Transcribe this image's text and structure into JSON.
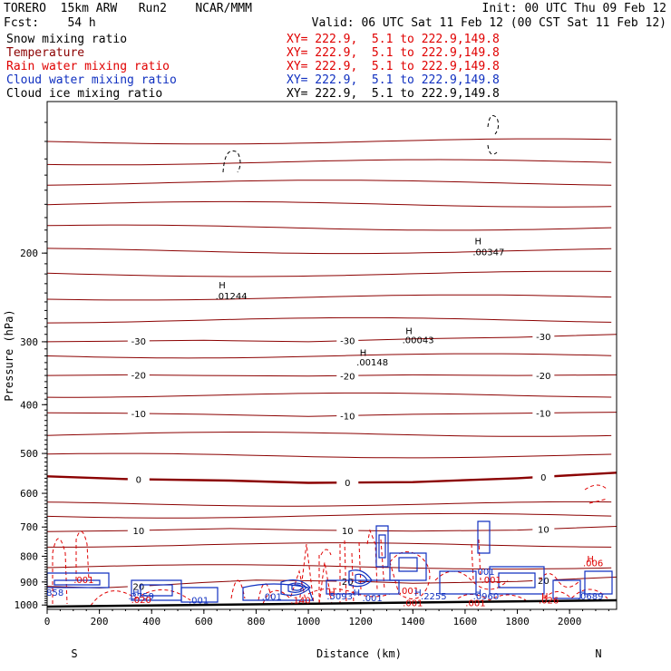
{
  "header": {
    "model": "TORERO  15km ARW   Run2    NCAR/MMM",
    "init": "Init: 00 UTC Thu 09 Feb 12",
    "fcst": "Fcst:    54 h",
    "valid": "Valid: 06 UTC Sat 11 Feb 12 (00 CST Sat 11 Feb 12)"
  },
  "legend": [
    {
      "name": "Snow mixing ratio",
      "xy": "XY= 222.9,  5.1 to 222.9,149.8",
      "color": "#000000"
    },
    {
      "name": "Temperature",
      "xy": "XY= 222.9,  5.1 to 222.9,149.8",
      "color": "#8b0000"
    },
    {
      "name": "Rain water mixing ratio",
      "xy": "XY= 222.9,  5.1 to 222.9,149.8",
      "color": "#e00000"
    },
    {
      "name": "Cloud water mixing ratio",
      "xy": "XY= 222.9,  5.1 to 222.9,149.8",
      "color": "#1030c0"
    },
    {
      "name": "Cloud ice mixing ratio",
      "xy": "XY= 222.9,  5.1 to 222.9,149.8",
      "color": "#000000"
    }
  ],
  "chart_data": {
    "type": "contour",
    "xlabel": "Distance (km)",
    "ylabel": "Pressure (hPa)",
    "xlim": [
      0,
      2180
    ],
    "ylim": [
      1020,
      100
    ],
    "y_scale": "log",
    "x_ticks": [
      0,
      200,
      400,
      600,
      800,
      1000,
      1200,
      1400,
      1600,
      1800,
      2000
    ],
    "y_ticks": [
      200,
      300,
      400,
      500,
      600,
      700,
      800,
      900,
      1000
    ],
    "x_end_labels": {
      "left": "S",
      "right": "N"
    },
    "temperature_isotherms": [
      {
        "value": -30,
        "label": "-30",
        "points": [
          [
            0,
            300
          ],
          [
            300,
            299
          ],
          [
            600,
            298
          ],
          [
            1000,
            300
          ],
          [
            1400,
            296
          ],
          [
            1800,
            294
          ],
          [
            2180,
            290
          ]
        ]
      },
      {
        "value": -20,
        "label": "-20",
        "points": [
          [
            0,
            350
          ],
          [
            300,
            349
          ],
          [
            600,
            350
          ],
          [
            1000,
            351
          ],
          [
            1400,
            349
          ],
          [
            1800,
            350
          ],
          [
            2180,
            349
          ]
        ]
      },
      {
        "value": -10,
        "label": "-10",
        "points": [
          [
            0,
            415
          ],
          [
            300,
            416
          ],
          [
            600,
            418
          ],
          [
            1000,
            422
          ],
          [
            1400,
            418
          ],
          [
            1800,
            416
          ],
          [
            2180,
            414
          ]
        ]
      },
      {
        "value": 0,
        "label": "0",
        "points": [
          [
            0,
            555
          ],
          [
            300,
            562
          ],
          [
            700,
            566
          ],
          [
            1000,
            572
          ],
          [
            1400,
            570
          ],
          [
            1800,
            560
          ],
          [
            2180,
            546
          ]
        ]
      },
      {
        "value": 10,
        "label": "10",
        "points": [
          [
            0,
            715
          ],
          [
            300,
            712
          ],
          [
            700,
            705
          ],
          [
            1000,
            710
          ],
          [
            1400,
            713
          ],
          [
            1800,
            710
          ],
          [
            2180,
            698
          ]
        ]
      },
      {
        "value": 20,
        "label": "20",
        "points": [
          [
            0,
            918
          ],
          [
            200,
            925
          ],
          [
            400,
            915
          ],
          [
            600,
            902
          ],
          [
            800,
            892
          ],
          [
            1000,
            895
          ],
          [
            1200,
            898
          ],
          [
            1400,
            905
          ],
          [
            1800,
            898
          ],
          [
            2180,
            880
          ]
        ]
      }
    ],
    "contour_labels": [
      {
        "text": "H",
        "x": 670,
        "p": 235,
        "color": "#000000"
      },
      {
        "text": ".01244",
        "x": 705,
        "p": 247,
        "color": "#000000"
      },
      {
        "text": "H",
        "x": 1385,
        "p": 290,
        "color": "#000000"
      },
      {
        "text": ".00043",
        "x": 1420,
        "p": 302,
        "color": "#000000"
      },
      {
        "text": "H",
        "x": 1210,
        "p": 320,
        "color": "#000000"
      },
      {
        "text": ".00148",
        "x": 1245,
        "p": 334,
        "color": "#000000"
      },
      {
        "text": "H",
        "x": 1650,
        "p": 192,
        "color": "#000000"
      },
      {
        "text": ".00347",
        "x": 1690,
        "p": 202,
        "color": "#000000"
      },
      {
        "text": "H",
        "x": 2080,
        "p": 822,
        "color": "#e00000"
      },
      {
        "text": ".006",
        "x": 2090,
        "p": 838,
        "color": "#e00000"
      },
      {
        "text": ".001",
        "x": 140,
        "p": 905,
        "color": "#e00000"
      },
      {
        "text": ".001",
        "x": 1700,
        "p": 905,
        "color": "#e00000"
      },
      {
        "text": ".001",
        "x": 1675,
        "p": 872,
        "color": "#1030c0"
      },
      {
        "text": "858",
        "x": 30,
        "p": 958,
        "color": "#1030c0"
      },
      {
        "text": "H",
        "x": 340,
        "p": 958,
        "color": "#1030c0"
      },
      {
        "text": ".3759",
        "x": 360,
        "p": 975,
        "color": "#1030c0"
      },
      {
        "text": ".020",
        "x": 360,
        "p": 990,
        "color": "#e00000"
      },
      {
        "text": ".001",
        "x": 580,
        "p": 992,
        "color": "#1030c0"
      },
      {
        "text": ".001",
        "x": 860,
        "p": 976,
        "color": "#1030c0"
      },
      {
        "text": ".140",
        "x": 970,
        "p": 993,
        "color": "#e00000"
      },
      {
        "text": "H",
        "x": 1090,
        "p": 958,
        "color": "#e00000"
      },
      {
        "text": ".5093",
        "x": 1120,
        "p": 974,
        "color": "#1030c0"
      },
      {
        "text": "H",
        "x": 1185,
        "p": 958,
        "color": "#1030c0"
      },
      {
        "text": ".001",
        "x": 1245,
        "p": 983,
        "color": "#1030c0"
      },
      {
        "text": ".001",
        "x": 1385,
        "p": 950,
        "color": "#e00000"
      },
      {
        "text": "H",
        "x": 1420,
        "p": 958,
        "color": "#1030c0"
      },
      {
        "text": ".2255",
        "x": 1480,
        "p": 974,
        "color": "#1030c0"
      },
      {
        "text": ".001",
        "x": 1400,
        "p": 1006,
        "color": "#e00000"
      },
      {
        "text": "H",
        "x": 1650,
        "p": 958,
        "color": "#1030c0"
      },
      {
        "text": ".0960",
        "x": 1680,
        "p": 974,
        "color": "#1030c0"
      },
      {
        "text": "H",
        "x": 1905,
        "p": 975,
        "color": "#e00000"
      },
      {
        "text": ".026",
        "x": 1920,
        "p": 993,
        "color": "#e00000"
      },
      {
        "text": "H",
        "x": 2050,
        "p": 958,
        "color": "#1030c0"
      },
      {
        "text": ".0689",
        "x": 2080,
        "p": 974,
        "color": "#1030c0"
      },
      {
        "text": ".001",
        "x": 1640,
        "p": 1006,
        "color": "#e00000"
      }
    ]
  }
}
